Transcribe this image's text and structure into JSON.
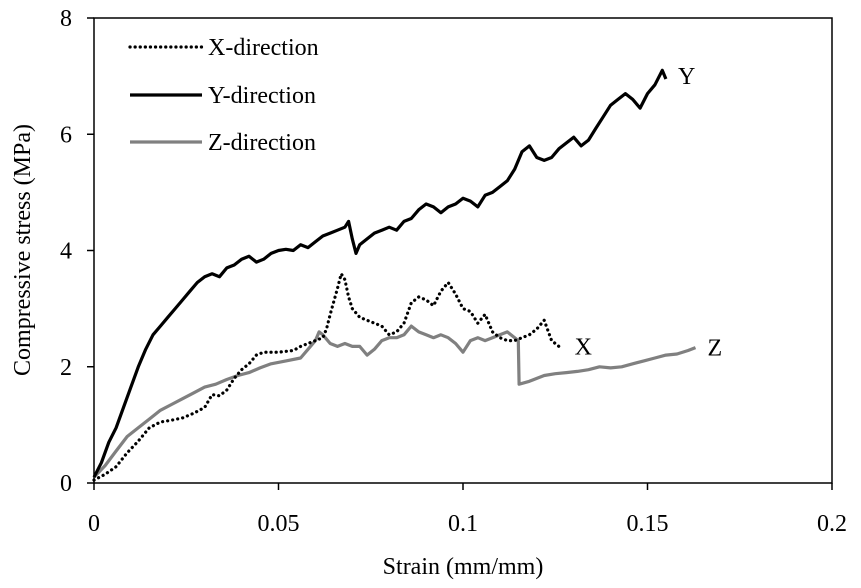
{
  "chart_data": {
    "type": "line",
    "title": "",
    "xlabel": "Strain (mm/mm)",
    "ylabel": "Compressive stress (MPa)",
    "xlim": [
      0,
      0.2
    ],
    "ylim": [
      0,
      8
    ],
    "xticks": [
      0,
      0.05,
      0.1,
      0.15,
      0.2
    ],
    "xtick_labels": [
      "0",
      "0.05",
      "0.1",
      "0.15",
      "0.2"
    ],
    "yticks": [
      0,
      2,
      4,
      6,
      8
    ],
    "ytick_labels": [
      "0",
      "2",
      "4",
      "6",
      "8"
    ],
    "grid": false,
    "legend_position": "top-left",
    "series": [
      {
        "name": "X-direction",
        "end_label": "X",
        "color": "#000000",
        "style": "dotted",
        "points": [
          [
            0,
            0.05
          ],
          [
            0.003,
            0.15
          ],
          [
            0.006,
            0.28
          ],
          [
            0.009,
            0.52
          ],
          [
            0.012,
            0.72
          ],
          [
            0.015,
            0.95
          ],
          [
            0.018,
            1.05
          ],
          [
            0.021,
            1.08
          ],
          [
            0.024,
            1.12
          ],
          [
            0.027,
            1.2
          ],
          [
            0.03,
            1.3
          ],
          [
            0.032,
            1.52
          ],
          [
            0.034,
            1.5
          ],
          [
            0.036,
            1.6
          ],
          [
            0.038,
            1.8
          ],
          [
            0.04,
            1.95
          ],
          [
            0.042,
            2.05
          ],
          [
            0.044,
            2.2
          ],
          [
            0.046,
            2.25
          ],
          [
            0.05,
            2.25
          ],
          [
            0.054,
            2.28
          ],
          [
            0.056,
            2.35
          ],
          [
            0.058,
            2.4
          ],
          [
            0.06,
            2.45
          ],
          [
            0.062,
            2.5
          ],
          [
            0.063,
            2.65
          ],
          [
            0.064,
            2.9
          ],
          [
            0.066,
            3.35
          ],
          [
            0.067,
            3.6
          ],
          [
            0.068,
            3.5
          ],
          [
            0.069,
            3.2
          ],
          [
            0.07,
            3.0
          ],
          [
            0.072,
            2.85
          ],
          [
            0.074,
            2.8
          ],
          [
            0.076,
            2.75
          ],
          [
            0.078,
            2.7
          ],
          [
            0.08,
            2.55
          ],
          [
            0.082,
            2.6
          ],
          [
            0.084,
            2.75
          ],
          [
            0.086,
            3.1
          ],
          [
            0.088,
            3.2
          ],
          [
            0.09,
            3.15
          ],
          [
            0.092,
            3.05
          ],
          [
            0.094,
            3.3
          ],
          [
            0.096,
            3.45
          ],
          [
            0.098,
            3.25
          ],
          [
            0.1,
            3.0
          ],
          [
            0.102,
            2.95
          ],
          [
            0.104,
            2.75
          ],
          [
            0.106,
            2.9
          ],
          [
            0.108,
            2.6
          ],
          [
            0.11,
            2.5
          ],
          [
            0.112,
            2.45
          ],
          [
            0.114,
            2.45
          ],
          [
            0.116,
            2.5
          ],
          [
            0.118,
            2.55
          ],
          [
            0.12,
            2.65
          ],
          [
            0.122,
            2.8
          ],
          [
            0.124,
            2.45
          ],
          [
            0.126,
            2.35
          ],
          [
            0.127,
            2.35
          ]
        ]
      },
      {
        "name": "Y-direction",
        "end_label": "Y",
        "color": "#000000",
        "style": "solid",
        "points": [
          [
            0,
            0.1
          ],
          [
            0.002,
            0.35
          ],
          [
            0.004,
            0.7
          ],
          [
            0.006,
            0.95
          ],
          [
            0.008,
            1.3
          ],
          [
            0.01,
            1.65
          ],
          [
            0.012,
            2.0
          ],
          [
            0.014,
            2.3
          ],
          [
            0.016,
            2.55
          ],
          [
            0.018,
            2.7
          ],
          [
            0.02,
            2.85
          ],
          [
            0.022,
            3.0
          ],
          [
            0.024,
            3.15
          ],
          [
            0.026,
            3.3
          ],
          [
            0.028,
            3.45
          ],
          [
            0.03,
            3.55
          ],
          [
            0.032,
            3.6
          ],
          [
            0.034,
            3.55
          ],
          [
            0.036,
            3.7
          ],
          [
            0.038,
            3.75
          ],
          [
            0.04,
            3.85
          ],
          [
            0.042,
            3.9
          ],
          [
            0.044,
            3.8
          ],
          [
            0.046,
            3.85
          ],
          [
            0.048,
            3.95
          ],
          [
            0.05,
            4.0
          ],
          [
            0.052,
            4.02
          ],
          [
            0.054,
            4.0
          ],
          [
            0.056,
            4.1
          ],
          [
            0.058,
            4.05
          ],
          [
            0.06,
            4.15
          ],
          [
            0.062,
            4.25
          ],
          [
            0.064,
            4.3
          ],
          [
            0.066,
            4.35
          ],
          [
            0.068,
            4.4
          ],
          [
            0.069,
            4.5
          ],
          [
            0.07,
            4.2
          ],
          [
            0.071,
            3.95
          ],
          [
            0.072,
            4.1
          ],
          [
            0.074,
            4.2
          ],
          [
            0.076,
            4.3
          ],
          [
            0.078,
            4.35
          ],
          [
            0.08,
            4.4
          ],
          [
            0.082,
            4.35
          ],
          [
            0.084,
            4.5
          ],
          [
            0.086,
            4.55
          ],
          [
            0.088,
            4.7
          ],
          [
            0.09,
            4.8
          ],
          [
            0.092,
            4.75
          ],
          [
            0.094,
            4.65
          ],
          [
            0.096,
            4.75
          ],
          [
            0.098,
            4.8
          ],
          [
            0.1,
            4.9
          ],
          [
            0.102,
            4.85
          ],
          [
            0.104,
            4.75
          ],
          [
            0.106,
            4.95
          ],
          [
            0.108,
            5.0
          ],
          [
            0.11,
            5.1
          ],
          [
            0.112,
            5.2
          ],
          [
            0.114,
            5.4
          ],
          [
            0.116,
            5.7
          ],
          [
            0.118,
            5.8
          ],
          [
            0.12,
            5.6
          ],
          [
            0.122,
            5.55
          ],
          [
            0.124,
            5.6
          ],
          [
            0.126,
            5.75
          ],
          [
            0.128,
            5.85
          ],
          [
            0.13,
            5.95
          ],
          [
            0.132,
            5.8
          ],
          [
            0.134,
            5.9
          ],
          [
            0.136,
            6.1
          ],
          [
            0.138,
            6.3
          ],
          [
            0.14,
            6.5
          ],
          [
            0.142,
            6.6
          ],
          [
            0.144,
            6.7
          ],
          [
            0.146,
            6.6
          ],
          [
            0.148,
            6.45
          ],
          [
            0.15,
            6.7
          ],
          [
            0.152,
            6.85
          ],
          [
            0.154,
            7.1
          ],
          [
            0.155,
            6.95
          ]
        ]
      },
      {
        "name": "Z-direction",
        "end_label": "Z",
        "color": "#808080",
        "style": "solid",
        "points": [
          [
            0,
            0.1
          ],
          [
            0.003,
            0.3
          ],
          [
            0.006,
            0.55
          ],
          [
            0.009,
            0.8
          ],
          [
            0.012,
            0.95
          ],
          [
            0.015,
            1.1
          ],
          [
            0.018,
            1.25
          ],
          [
            0.021,
            1.35
          ],
          [
            0.024,
            1.45
          ],
          [
            0.027,
            1.55
          ],
          [
            0.03,
            1.65
          ],
          [
            0.033,
            1.7
          ],
          [
            0.036,
            1.78
          ],
          [
            0.039,
            1.85
          ],
          [
            0.042,
            1.9
          ],
          [
            0.045,
            1.98
          ],
          [
            0.048,
            2.05
          ],
          [
            0.052,
            2.1
          ],
          [
            0.056,
            2.15
          ],
          [
            0.058,
            2.3
          ],
          [
            0.06,
            2.45
          ],
          [
            0.061,
            2.6
          ],
          [
            0.062,
            2.55
          ],
          [
            0.064,
            2.4
          ],
          [
            0.066,
            2.35
          ],
          [
            0.068,
            2.4
          ],
          [
            0.07,
            2.35
          ],
          [
            0.072,
            2.35
          ],
          [
            0.074,
            2.2
          ],
          [
            0.076,
            2.3
          ],
          [
            0.078,
            2.45
          ],
          [
            0.08,
            2.5
          ],
          [
            0.082,
            2.5
          ],
          [
            0.084,
            2.55
          ],
          [
            0.086,
            2.7
          ],
          [
            0.088,
            2.6
          ],
          [
            0.09,
            2.55
          ],
          [
            0.092,
            2.5
          ],
          [
            0.094,
            2.55
          ],
          [
            0.096,
            2.5
          ],
          [
            0.098,
            2.4
          ],
          [
            0.1,
            2.25
          ],
          [
            0.102,
            2.45
          ],
          [
            0.104,
            2.5
          ],
          [
            0.106,
            2.45
          ],
          [
            0.108,
            2.5
          ],
          [
            0.11,
            2.55
          ],
          [
            0.112,
            2.6
          ],
          [
            0.114,
            2.5
          ],
          [
            0.115,
            2.45
          ],
          [
            0.1152,
            1.7
          ],
          [
            0.118,
            1.75
          ],
          [
            0.12,
            1.8
          ],
          [
            0.122,
            1.85
          ],
          [
            0.125,
            1.88
          ],
          [
            0.128,
            1.9
          ],
          [
            0.131,
            1.92
          ],
          [
            0.134,
            1.95
          ],
          [
            0.137,
            2.0
          ],
          [
            0.14,
            1.98
          ],
          [
            0.143,
            2.0
          ],
          [
            0.146,
            2.05
          ],
          [
            0.149,
            2.1
          ],
          [
            0.152,
            2.15
          ],
          [
            0.155,
            2.2
          ],
          [
            0.158,
            2.22
          ],
          [
            0.161,
            2.28
          ],
          [
            0.163,
            2.33
          ]
        ]
      }
    ]
  }
}
